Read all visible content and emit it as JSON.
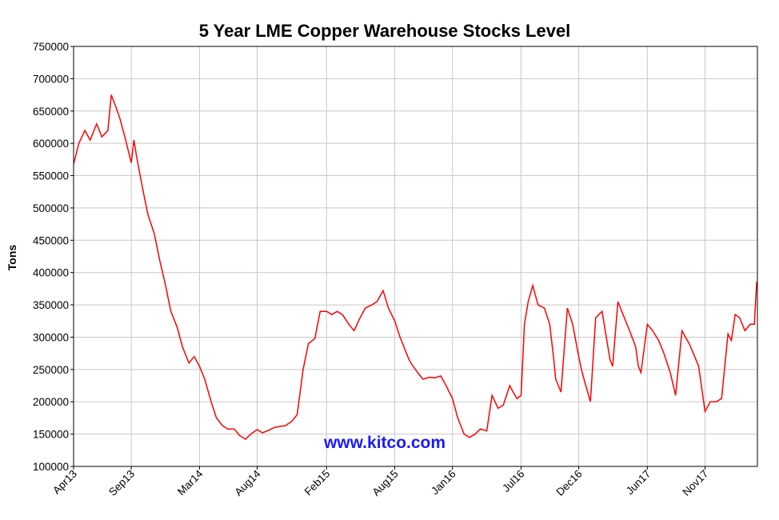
{
  "chart_data": {
    "type": "line",
    "title": "5 Year LME Copper Warehouse Stocks Level",
    "xlabel": "",
    "ylabel": "Tons",
    "ylim": [
      100000,
      750000
    ],
    "yticks": [
      "750000",
      "700000",
      "650000",
      "600000",
      "550000",
      "500000",
      "450000",
      "400000",
      "350000",
      "300000",
      "250000",
      "200000",
      "150000",
      "100000"
    ],
    "xticks": [
      "Apr13",
      "Sep13",
      "Mar14",
      "Aug14",
      "Feb15",
      "Aug15",
      "Jan16",
      "Jul16",
      "Dec16",
      "Jun17",
      "Nov17"
    ],
    "xrange": [
      "2013-04-01",
      "2018-03-20"
    ],
    "grid": true,
    "watermark": "www.kitco.com",
    "colors": {
      "line": "#ff0000",
      "grid": "#c8c8c8",
      "axis": "#000000",
      "watermark": "#1a1aff"
    },
    "series": [
      {
        "x": [
          "2013-04-01",
          "2013-04-15",
          "2013-05-01",
          "2013-05-15",
          "2013-06-01",
          "2013-06-15",
          "2013-07-01",
          "2013-07-10",
          "2013-07-20",
          "2013-08-01",
          "2013-08-15",
          "2013-09-01",
          "2013-09-08",
          "2013-09-15",
          "2013-10-01",
          "2013-10-15",
          "2013-11-01",
          "2013-11-15",
          "2013-12-01",
          "2013-12-15",
          "2014-01-01",
          "2014-01-15",
          "2014-02-01",
          "2014-02-15",
          "2014-03-01",
          "2014-03-15",
          "2014-04-01",
          "2014-04-15",
          "2014-05-01",
          "2014-05-15",
          "2014-06-01",
          "2014-06-15",
          "2014-07-01",
          "2014-07-15",
          "2014-08-01",
          "2014-08-15",
          "2014-09-01",
          "2014-09-15",
          "2014-10-01",
          "2014-10-15",
          "2014-11-01",
          "2014-11-15",
          "2014-12-01",
          "2014-12-15",
          "2015-01-01",
          "2015-01-15",
          "2015-02-01",
          "2015-02-15",
          "2015-03-01",
          "2015-03-15",
          "2015-04-01",
          "2015-04-15",
          "2015-05-01",
          "2015-05-15",
          "2015-06-01",
          "2015-06-15",
          "2015-07-01",
          "2015-07-15",
          "2015-08-01",
          "2015-08-15",
          "2015-09-01",
          "2015-09-08",
          "2015-09-15",
          "2015-10-01",
          "2015-10-15",
          "2015-11-01",
          "2015-11-15",
          "2015-12-01",
          "2015-12-15",
          "2016-01-01",
          "2016-01-15",
          "2016-02-01",
          "2016-02-15",
          "2016-03-01",
          "2016-03-15",
          "2016-04-01",
          "2016-04-15",
          "2016-05-01",
          "2016-05-15",
          "2016-06-01",
          "2016-06-10",
          "2016-06-20",
          "2016-07-01",
          "2016-07-10",
          "2016-07-20",
          "2016-08-01",
          "2016-08-15",
          "2016-09-01",
          "2016-09-15",
          "2016-09-25",
          "2016-10-01",
          "2016-10-15",
          "2016-11-01",
          "2016-11-15",
          "2016-12-01",
          "2016-12-08",
          "2016-12-15",
          "2017-01-01",
          "2017-01-15",
          "2017-02-01",
          "2017-02-15",
          "2017-02-22",
          "2017-03-01",
          "2017-03-15",
          "2017-04-01",
          "2017-04-15",
          "2017-05-01",
          "2017-05-08",
          "2017-05-15",
          "2017-06-01",
          "2017-06-15",
          "2017-07-01",
          "2017-07-15",
          "2017-08-01",
          "2017-08-15",
          "2017-09-01",
          "2017-09-10",
          "2017-09-20",
          "2017-10-01",
          "2017-10-15",
          "2017-11-01",
          "2017-11-15",
          "2017-12-01",
          "2017-12-15",
          "2018-01-01",
          "2018-01-10",
          "2018-01-20",
          "2018-02-01",
          "2018-02-15",
          "2018-03-01",
          "2018-03-12",
          "2018-03-18",
          "2018-03-20"
        ],
        "y": [
          568000,
          600000,
          620000,
          605000,
          630000,
          610000,
          620000,
          675000,
          660000,
          640000,
          610000,
          570000,
          605000,
          580000,
          530000,
          490000,
          460000,
          420000,
          380000,
          340000,
          315000,
          285000,
          260000,
          270000,
          255000,
          235000,
          200000,
          175000,
          163000,
          158000,
          158000,
          148000,
          142000,
          150000,
          157000,
          152000,
          156000,
          160000,
          162000,
          163000,
          170000,
          180000,
          250000,
          290000,
          298000,
          340000,
          340000,
          335000,
          340000,
          335000,
          320000,
          310000,
          330000,
          345000,
          350000,
          355000,
          372000,
          345000,
          325000,
          300000,
          275000,
          265000,
          258000,
          245000,
          235000,
          238000,
          237000,
          240000,
          225000,
          205000,
          175000,
          150000,
          145000,
          150000,
          158000,
          155000,
          210000,
          190000,
          195000,
          225000,
          215000,
          205000,
          210000,
          320000,
          355000,
          380000,
          350000,
          345000,
          320000,
          270000,
          235000,
          215000,
          345000,
          320000,
          270000,
          250000,
          235000,
          200000,
          330000,
          340000,
          290000,
          265000,
          255000,
          355000,
          330000,
          310000,
          285000,
          255000,
          245000,
          320000,
          310000,
          295000,
          275000,
          245000,
          210000,
          310000,
          300000,
          290000,
          275000,
          255000,
          185000,
          200000,
          200000,
          205000,
          305000,
          295000,
          335000,
          330000,
          310000,
          320000,
          320000,
          385000,
          385000
        ]
      }
    ]
  }
}
